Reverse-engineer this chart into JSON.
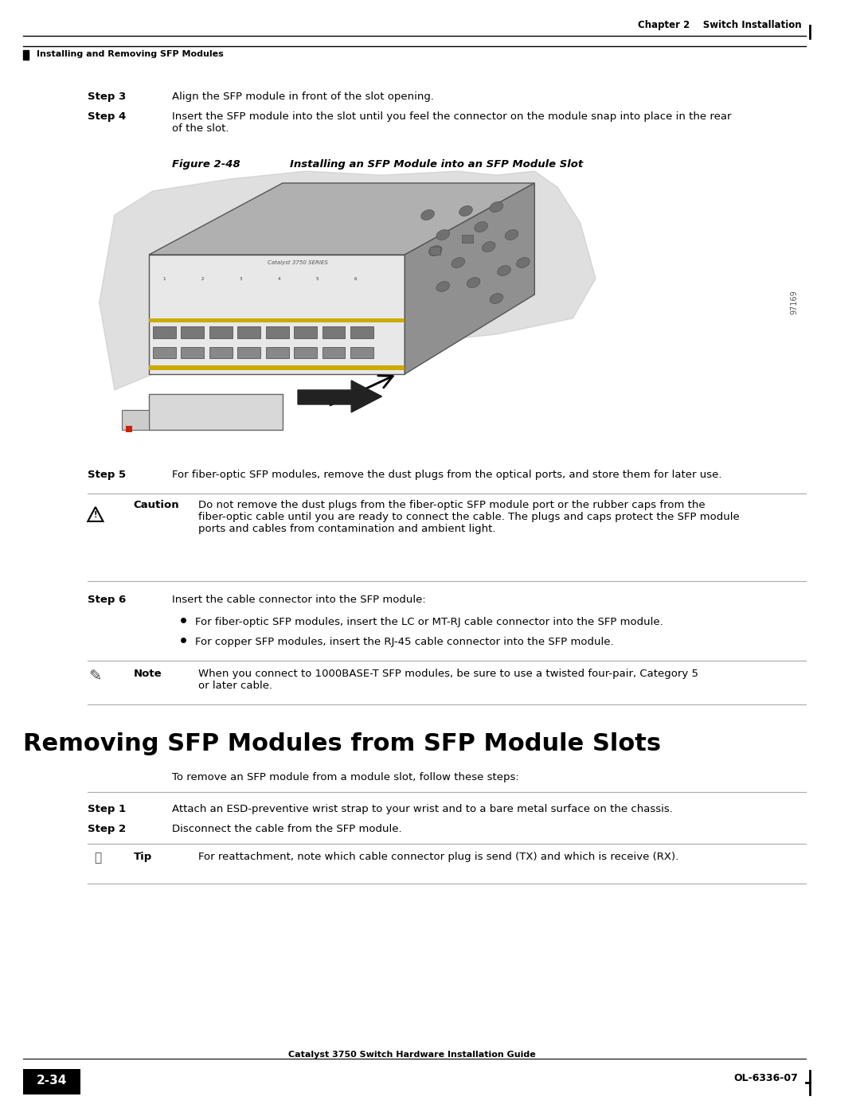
{
  "page_bg": "#ffffff",
  "header_line_color": "#000000",
  "header_text_right": "Chapter 2    Switch Installation",
  "header_text_left": "Installing and Removing SFP Modules",
  "footer_text_center": "Catalyst 3750 Switch Hardware Installation Guide",
  "footer_text_left": "2-34",
  "footer_text_right": "OL-6336-07",
  "step3_label": "Step 3",
  "step3_text": "Align the SFP module in front of the slot opening.",
  "step4_label": "Step 4",
  "step4_text": "Insert the SFP module into the slot until you feel the connector on the module snap into place in the rear\nof the slot.",
  "figure_label": "Figure 2-48",
  "figure_caption": "Installing an SFP Module into an SFP Module Slot",
  "figure_number_side": "97169",
  "step5_label": "Step 5",
  "step5_text": "For fiber-optic SFP modules, remove the dust plugs from the optical ports, and store them for later use.",
  "caution_label": "Caution",
  "caution_text": "Do not remove the dust plugs from the fiber-optic SFP module port or the rubber caps from the\nfiber-optic cable until you are ready to connect the cable. The plugs and caps protect the SFP module\nports and cables from contamination and ambient light.",
  "step6_label": "Step 6",
  "step6_text": "Insert the cable connector into the SFP module:",
  "bullet1": "For fiber-optic SFP modules, insert the LC or MT-RJ cable connector into the SFP module.",
  "bullet2": "For copper SFP modules, insert the RJ-45 cable connector into the SFP module.",
  "note_label": "Note",
  "note_text": "When you connect to 1000BASE-T SFP modules, be sure to use a twisted four-pair, Category 5\nor later cable.",
  "section_title": "Removing SFP Modules from SFP Module Slots",
  "section_intro": "To remove an SFP module from a module slot, follow these steps:",
  "step1r_label": "Step 1",
  "step1r_text": "Attach an ESD-preventive wrist strap to your wrist and to a bare metal surface on the chassis.",
  "step2r_label": "Step 2",
  "step2r_text": "Disconnect the cable from the SFP module.",
  "tip_label": "Tip",
  "tip_text": "For reattachment, note which cable connector plug is send (TX) and which is receive (RX)."
}
